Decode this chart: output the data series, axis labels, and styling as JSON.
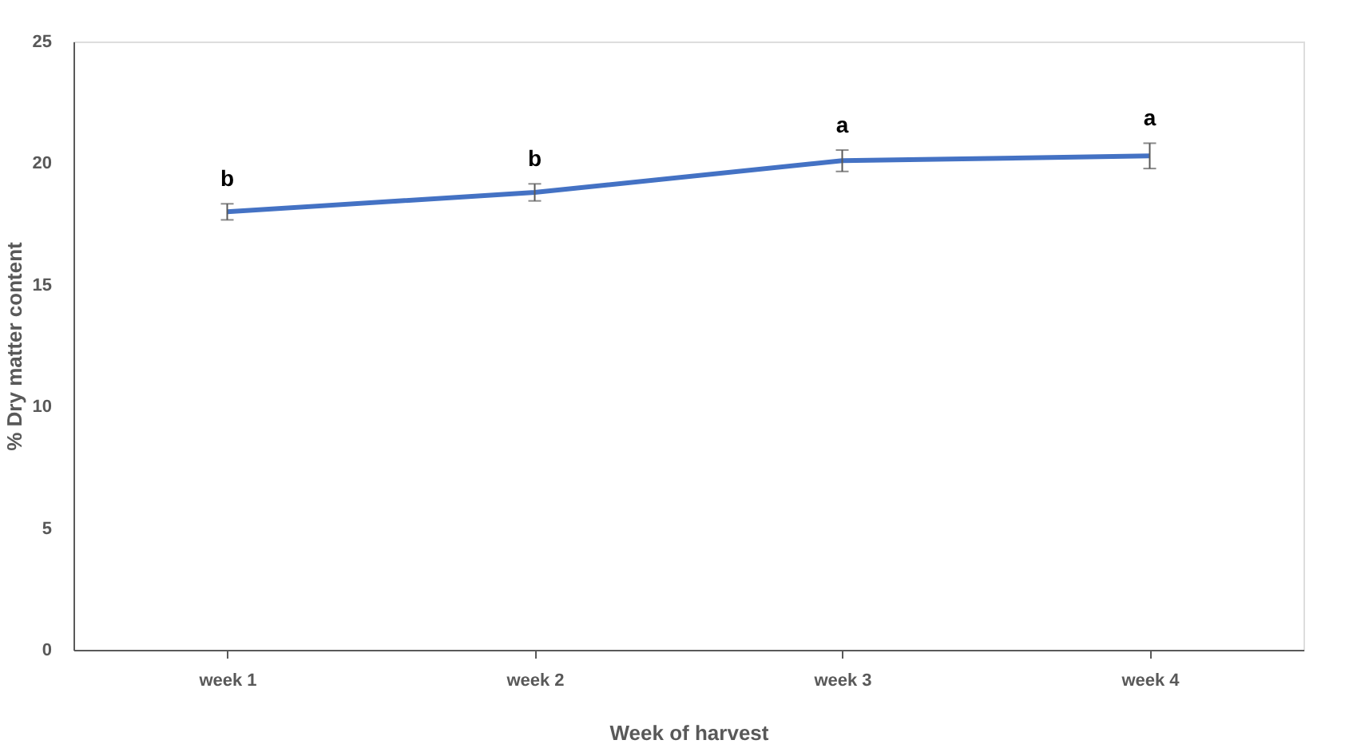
{
  "chart_data": {
    "type": "line",
    "xlabel": "Week of harvest",
    "ylabel": "% Dry matter content",
    "categories": [
      "week 1",
      "week 2",
      "week 3",
      "week 4"
    ],
    "series": [
      {
        "color": "#4472c4",
        "values": [
          18.0,
          18.8,
          20.1,
          20.3
        ],
        "errors": [
          0.33,
          0.35,
          0.44,
          0.52
        ]
      }
    ],
    "ylim": [
      0,
      25
    ],
    "yticks": [
      0,
      5,
      10,
      15,
      20,
      25
    ],
    "grid": false,
    "marker": "none",
    "line_style": "solid",
    "annotations": [
      "b",
      "b",
      "a",
      "a"
    ]
  }
}
